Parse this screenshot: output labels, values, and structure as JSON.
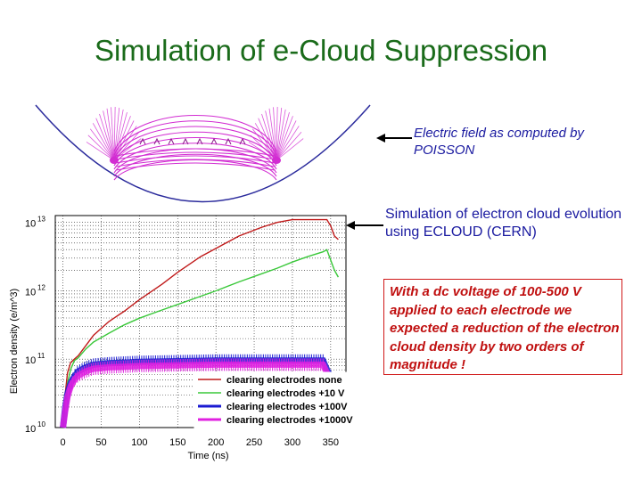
{
  "slide": {
    "title": "Simulation of e-Cloud Suppression",
    "note_field": "Electric field as computed by POISSON",
    "note_sim": "Simulation of electron cloud evolution using ECLOUD (CERN)",
    "note_result": "With a dc voltage of 100-500 V applied to each electrode we expected a reduction of the electron cloud density by two orders of magnitude !"
  },
  "colors": {
    "title": "#1a6b1a",
    "note_blue": "#1a1aa0",
    "note_red": "#c01010",
    "field_lines": "#d22cd2",
    "chamber": "#2a2a9c"
  },
  "icons": [
    "arrow-left-icon",
    "arrow-left-icon"
  ],
  "chart_data": {
    "type": "line",
    "title": "",
    "xlabel": "Time (ns)",
    "ylabel": "Electron density (e/m^3)",
    "xlim": [
      -10,
      370
    ],
    "ylim": [
      10,
      13.1
    ],
    "y_scale": "log",
    "grid": true,
    "legend_position": "bottom-right",
    "x_ticks": [
      0,
      50,
      100,
      150,
      200,
      250,
      300,
      350
    ],
    "y_ticks": [
      {
        "value": 10,
        "base": "10",
        "exp": "10"
      },
      {
        "value": 11,
        "base": "10",
        "exp": "11"
      },
      {
        "value": 12,
        "base": "10",
        "exp": "12"
      },
      {
        "value": 13,
        "base": "10",
        "exp": "13"
      }
    ],
    "series": [
      {
        "name": "clearing electrodes none",
        "color": "#c01a1a",
        "x": [
          0,
          3,
          6,
          10,
          15,
          20,
          30,
          40,
          60,
          80,
          100,
          130,
          150,
          180,
          200,
          230,
          260,
          280,
          300,
          320,
          340,
          345,
          350,
          355,
          360
        ],
        "y": [
          10.0,
          10.5,
          10.8,
          10.95,
          11.0,
          11.05,
          11.2,
          11.35,
          11.55,
          11.7,
          11.87,
          12.1,
          12.27,
          12.5,
          12.62,
          12.8,
          12.93,
          13.0,
          13.04,
          13.04,
          13.04,
          13.04,
          12.95,
          12.8,
          12.75
        ]
      },
      {
        "name": "clearing electrodes +10 V",
        "color": "#3ac83a",
        "x": [
          0,
          3,
          6,
          10,
          15,
          20,
          30,
          40,
          60,
          80,
          100,
          130,
          150,
          180,
          200,
          230,
          260,
          280,
          300,
          320,
          340,
          345,
          350,
          355,
          360
        ],
        "y": [
          10.0,
          10.4,
          10.65,
          10.85,
          10.98,
          11.02,
          11.15,
          11.25,
          11.38,
          11.5,
          11.6,
          11.72,
          11.8,
          11.92,
          12.0,
          12.13,
          12.25,
          12.33,
          12.42,
          12.5,
          12.57,
          12.6,
          12.45,
          12.3,
          12.2
        ]
      },
      {
        "name": "clearing electrodes +100V",
        "color": "#1a1ad2",
        "x": [
          0,
          3,
          6,
          10,
          15,
          20,
          30,
          40,
          60,
          80,
          100,
          150,
          200,
          250,
          300,
          340,
          345,
          350,
          355,
          360
        ],
        "y": [
          10.0,
          10.3,
          10.5,
          10.65,
          10.75,
          10.82,
          10.88,
          10.92,
          10.94,
          10.95,
          10.96,
          10.97,
          10.98,
          10.98,
          10.98,
          10.98,
          10.85,
          10.75,
          10.7,
          10.7
        ]
      },
      {
        "name": "clearing electrodes +1000V",
        "color": "#e020e0",
        "x": [
          0,
          3,
          6,
          10,
          15,
          20,
          30,
          40,
          60,
          80,
          100,
          150,
          200,
          250,
          300,
          340,
          345,
          350,
          355,
          360
        ],
        "y": [
          10.0,
          10.25,
          10.45,
          10.6,
          10.7,
          10.76,
          10.82,
          10.86,
          10.88,
          10.89,
          10.9,
          10.91,
          10.92,
          10.92,
          10.92,
          10.92,
          10.8,
          10.72,
          10.68,
          10.68
        ]
      }
    ]
  }
}
